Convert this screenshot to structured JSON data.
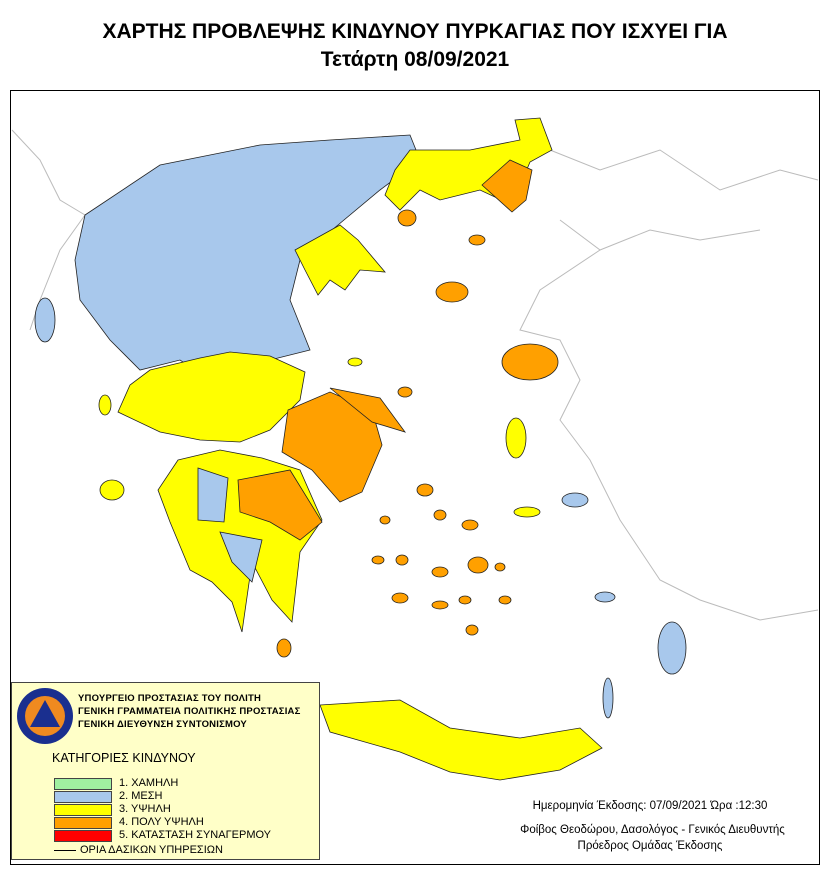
{
  "header": {
    "title": "ΧΑΡΤΗΣ ΠΡΟΒΛΕΨΗΣ ΚΙΝΔΥΝΟΥ ΠΥΡΚΑΓΙΑΣ ΠΟΥ ΙΣΧΥΕΙ ΓΙΑ",
    "date": "Τετάρτη 08/09/2021"
  },
  "legend": {
    "logo_text": "ΠΟΛΙΤΙΚΗ ΠΡΟΣΤΑΣΙΑ ΕΛΛΑΔΑ",
    "org_lines": [
      "ΥΠΟΥΡΓΕΙΟ ΠΡΟΣΤΑΣΙΑΣ ΤΟΥ ΠΟΛΙΤΗ",
      "ΓΕΝΙΚΗ ΓΡΑΜΜΑΤΕΙΑ ΠΟΛΙΤΙΚΗΣ ΠΡΟΣΤΑΣΙΑΣ",
      "ΓΕΝΙΚΗ ΔΙΕΥΘΥΝΣΗ ΣΥΝΤΟΝΙΣΜΟΥ"
    ],
    "categories_title": "ΚΑΤΗΓΟΡΙΕΣ ΚΙΝΔΥΝΟΥ",
    "categories": [
      {
        "label": "1. ΧΑΜΗΛΗ",
        "color": "#a0f0a0"
      },
      {
        "label": "2. ΜΕΣΗ",
        "color": "#a8c8ec"
      },
      {
        "label": "3. ΥΨΗΛΗ",
        "color": "#ffff00"
      },
      {
        "label": "4. ΠΟΛΥ ΥΨΗΛΗ",
        "color": "#ffa000"
      },
      {
        "label": "5. ΚΑΤΑΣΤΑΣΗ ΣΥΝΑΓΕΡΜΟΥ",
        "color": "#ff0000"
      }
    ],
    "boundary_label": "ΟΡΙΑ ΔΑΣΙΚΩΝ ΥΠΗΡΕΣΙΩΝ"
  },
  "footer": {
    "issue": "Ημερομηνία Έκδοσης: 07/09/2021  Ώρα :12:30",
    "author": "Φοίβος Θεοδώρου, Δασολόγος - Γενικός Διευθυντής",
    "role": "Πρόεδρος Ομάδας Έκδοσης"
  }
}
